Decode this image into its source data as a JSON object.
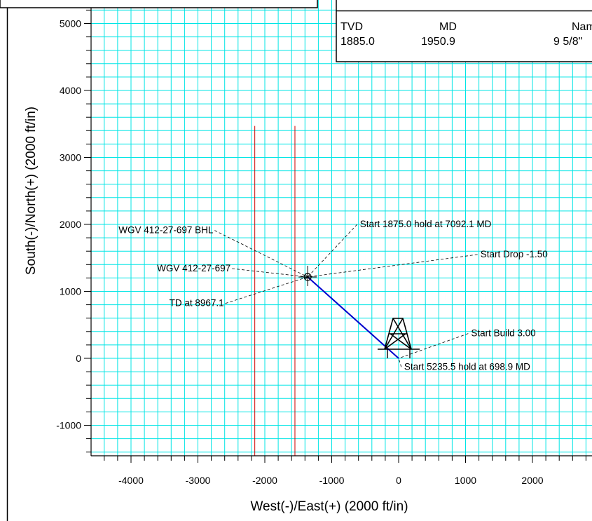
{
  "chart_data": {
    "type": "line",
    "xlabel": "West(-)/East(+)  (2000 ft/in)",
    "ylabel": "South(-)/North(+)  (2000 ft/in)",
    "xlim": [
      -4650,
      2820
    ],
    "ylim": [
      -1500,
      5250
    ],
    "x_ticks": [
      -4000,
      -3000,
      -2000,
      -1000,
      0,
      1000,
      2000
    ],
    "y_ticks": [
      -1000,
      0,
      1000,
      2000,
      3000,
      4000,
      5000
    ],
    "grid": true,
    "grid_color": "#00e5e5",
    "series": [
      {
        "color": "#0000cc",
        "x": [
          0,
          -1360
        ],
        "y": [
          0,
          1215
        ]
      }
    ],
    "lease_lines": {
      "color": "#cc0000",
      "x": [
        -2150,
        -1550
      ],
      "y_range": [
        -1500,
        3470
      ]
    },
    "target": {
      "x": -1360,
      "y": 1215
    },
    "rig": {
      "x": 0,
      "y": 0
    },
    "annotations": [
      {
        "text": "WGV 412-27-697 BHL",
        "label_at": [
          -2750,
          1910
        ],
        "point": [
          -1360,
          1215
        ]
      },
      {
        "text": "WGV 412-27-697",
        "label_at": [
          -2490,
          1340
        ],
        "point": [
          -1360,
          1215
        ]
      },
      {
        "text": "TD at 8967.1",
        "label_at": [
          -2590,
          820
        ],
        "point": [
          -1360,
          1215
        ]
      },
      {
        "text": "Start 1875.0 hold at 7092.1 MD",
        "label_at": [
          -620,
          2000
        ],
        "point": [
          -1360,
          1215
        ]
      },
      {
        "text": "Start Drop -1.50",
        "label_at": [
          1180,
          1550
        ],
        "point": [
          -1360,
          1215
        ]
      },
      {
        "text": "Start Build 3.00",
        "label_at": [
          1040,
          370
        ],
        "point": [
          0,
          0
        ]
      },
      {
        "text": "Start 5235.5 hold at 698.9 MD",
        "label_at": [
          40,
          -130
        ],
        "point": [
          0,
          0
        ]
      }
    ]
  },
  "casing_table": {
    "headers": [
      "TVD",
      "MD",
      "Name"
    ],
    "row": [
      "1885.0",
      "1950.9",
      "9 5/8\""
    ]
  }
}
